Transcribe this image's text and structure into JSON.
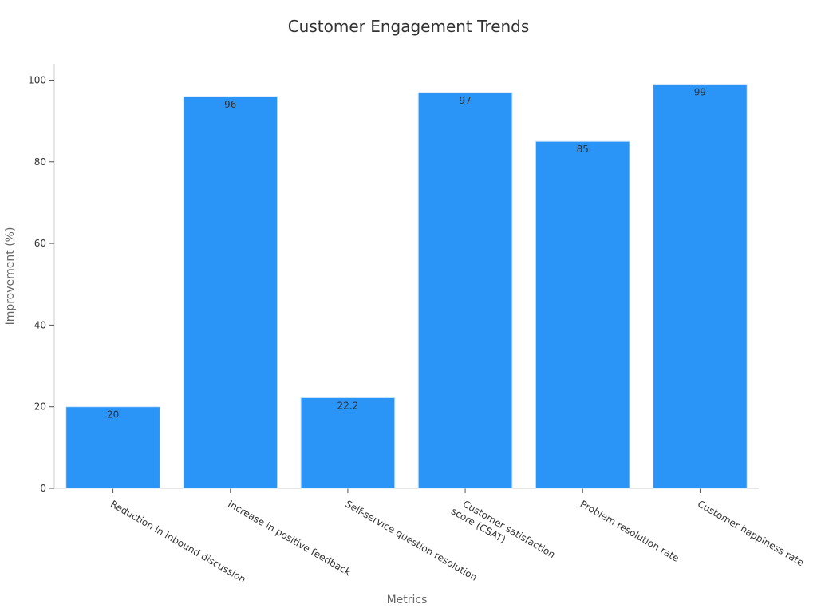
{
  "chart_data": {
    "type": "bar",
    "title": "Customer Engagement Trends",
    "xlabel": "Metrics",
    "ylabel": "Improvement (%)",
    "categories": [
      "Reduction in inbound discussion",
      "Increase in positive feedback",
      "Self-service question resolution",
      "Customer satisfaction\nscore (CSAT)",
      "Problem resolution rate",
      "Customer happiness rate"
    ],
    "values": [
      20,
      96,
      22.2,
      97,
      85,
      99
    ],
    "value_labels": [
      "20",
      "96",
      "22.2",
      "97",
      "85",
      "99"
    ],
    "ylim": [
      0,
      104
    ],
    "yticks": [
      0,
      20,
      40,
      60,
      80,
      100
    ],
    "grid": false,
    "legend": "none",
    "bar_color": "#2b95f7",
    "bar_edge_color": "#cfe6ff",
    "axis_color": "#cccccc",
    "text_color": "#333333",
    "label_color": "#666666"
  }
}
